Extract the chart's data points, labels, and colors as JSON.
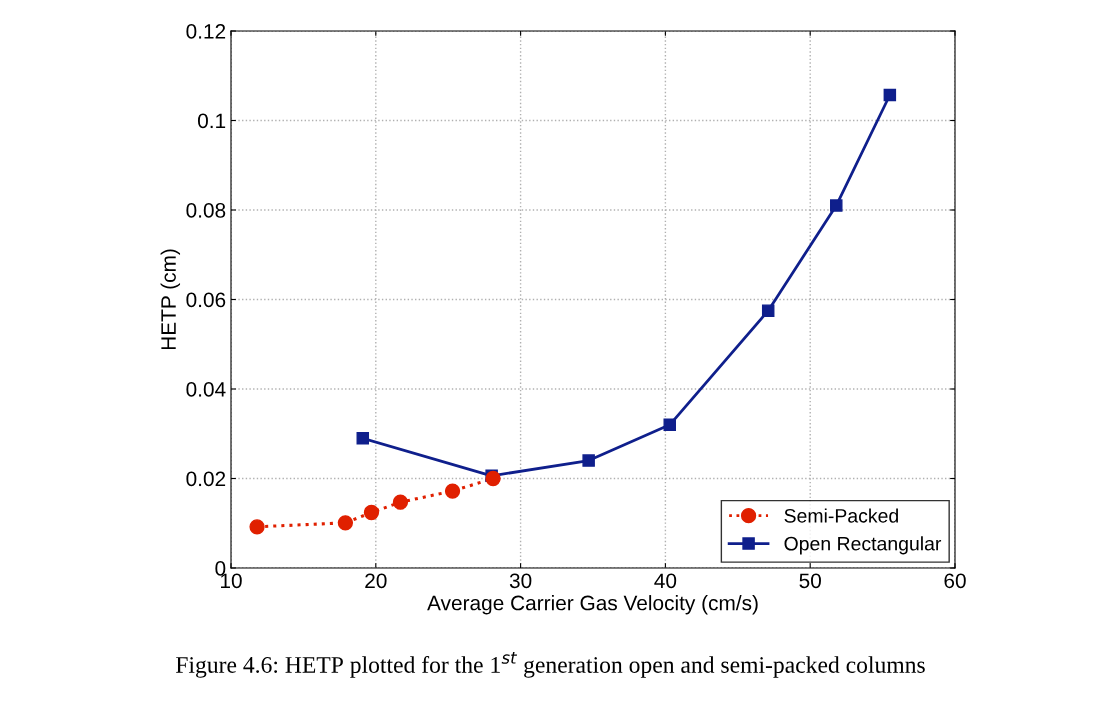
{
  "chart_data": {
    "type": "line",
    "xlabel": "Average Carrier Gas Velocity (cm/s)",
    "ylabel": "HETP (cm)",
    "series": [
      {
        "name": "Semi-Packed",
        "color": "#e02000",
        "marker": "circle",
        "line_style": "dotted",
        "x": [
          11.8,
          17.9,
          19.7,
          21.7,
          25.3,
          28.1
        ],
        "values": [
          0.0092,
          0.0101,
          0.0124,
          0.0147,
          0.0172,
          0.02
        ]
      },
      {
        "name": "Open Rectangular",
        "color": "#0f1f8c",
        "marker": "square",
        "line_style": "solid",
        "x": [
          19.1,
          28.0,
          34.7,
          40.3,
          47.1,
          51.8,
          55.5
        ],
        "values": [
          0.029,
          0.0206,
          0.024,
          0.032,
          0.0575,
          0.081,
          0.1057
        ]
      }
    ],
    "xlim": [
      10,
      60
    ],
    "xticks": [
      10,
      20,
      30,
      40,
      50,
      60
    ],
    "ylim": [
      0,
      0.12
    ],
    "yticks": [
      0,
      0.02,
      0.04,
      0.06,
      0.08,
      0.1,
      0.12
    ],
    "grid": true,
    "legend": "bottom right",
    "annotations": [
      "Figure 4.6: HETP plotted for the 1$^{st}$ generation open and semi-packed columns"
    ]
  }
}
